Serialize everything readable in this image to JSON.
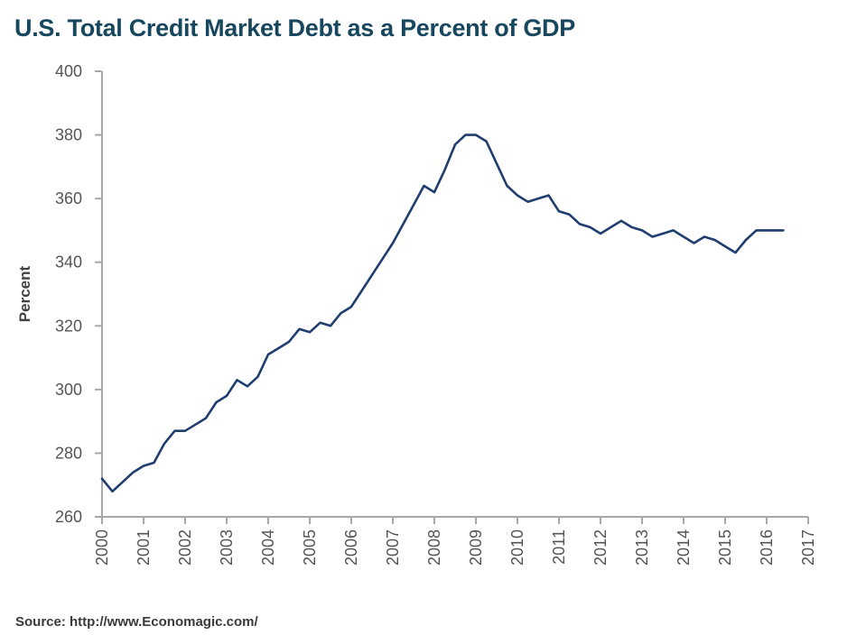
{
  "chart_data": {
    "type": "line",
    "title": "U.S. Total Credit Market Debt as a Percent of GDP",
    "xlabel": "",
    "ylabel": "Percent",
    "xlim": [
      2000,
      2017
    ],
    "ylim": [
      260,
      400
    ],
    "y_ticks": [
      260,
      280,
      300,
      320,
      340,
      360,
      380,
      400
    ],
    "x_ticks": [
      "2000",
      "2001",
      "2002",
      "2003",
      "2004",
      "2005",
      "2006",
      "2007",
      "2008",
      "2009",
      "2010",
      "2011",
      "2012",
      "2013",
      "2014",
      "2015",
      "2016",
      "2017"
    ],
    "grid": false,
    "series": [
      {
        "name": "Total Credit Market Debt % of GDP",
        "color": "#1f3d6e",
        "x": [
          2000.0,
          2000.25,
          2000.5,
          2000.75,
          2001.0,
          2001.25,
          2001.5,
          2001.75,
          2002.0,
          2002.25,
          2002.5,
          2002.75,
          2003.0,
          2003.25,
          2003.5,
          2003.75,
          2004.0,
          2004.25,
          2004.5,
          2004.75,
          2005.0,
          2005.25,
          2005.5,
          2005.75,
          2006.0,
          2006.25,
          2006.5,
          2006.75,
          2007.0,
          2007.25,
          2007.5,
          2007.75,
          2008.0,
          2008.25,
          2008.5,
          2008.75,
          2009.0,
          2009.25,
          2009.5,
          2009.75,
          2010.0,
          2010.25,
          2010.5,
          2010.75,
          2011.0,
          2011.25,
          2011.5,
          2011.75,
          2012.0,
          2012.25,
          2012.5,
          2012.75,
          2013.0,
          2013.25,
          2013.5,
          2013.75,
          2014.0,
          2014.25,
          2014.5,
          2014.75,
          2015.0,
          2015.25,
          2015.5,
          2015.75,
          2016.0,
          2016.25,
          2016.4
        ],
        "values": [
          272,
          268,
          271,
          274,
          276,
          277,
          283,
          287,
          287,
          289,
          291,
          296,
          298,
          303,
          301,
          304,
          311,
          313,
          315,
          319,
          318,
          321,
          320,
          324,
          326,
          331,
          336,
          341,
          346,
          352,
          358,
          364,
          362,
          369,
          377,
          380,
          380,
          378,
          371,
          364,
          361,
          359,
          360,
          361,
          356,
          355,
          352,
          351,
          349,
          351,
          353,
          351,
          350,
          348,
          349,
          350,
          348,
          346,
          348,
          347,
          345,
          343,
          347,
          350,
          350,
          350,
          350
        ]
      }
    ]
  },
  "source": "Source: http://www.Economagic.com/"
}
